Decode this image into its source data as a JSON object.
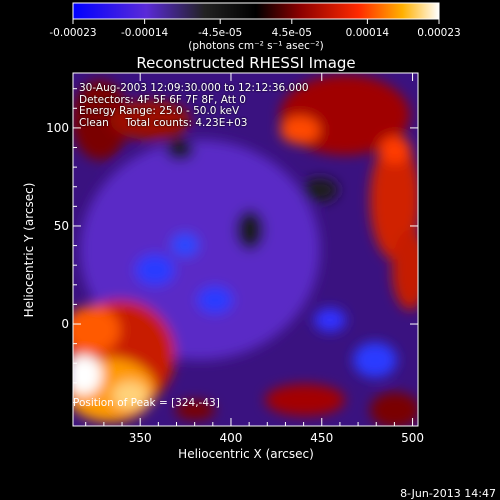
{
  "chart_data": {
    "type": "heatmap",
    "title": "Reconstructed RHESSI Image",
    "xlabel": "Heliocentric X (arcsec)",
    "ylabel": "Heliocentric Y (arcsec)",
    "xlim": [
      313,
      503
    ],
    "ylim": [
      -52,
      128
    ],
    "x_ticks": [
      "350",
      "400",
      "450",
      "500"
    ],
    "y_ticks": [
      "0",
      "50",
      "100"
    ],
    "colorbar": {
      "ticks": [
        "-0.00023",
        "-0.00014",
        "-4.5e-05",
        "4.5e-05",
        "0.00014",
        "0.00023"
      ],
      "units": "(photons cm⁻² s⁻¹ asec⁻²)",
      "range": [
        -0.00023,
        0.00023
      ],
      "colors": [
        "#000000",
        "#1a2aff",
        "#7b2bd6",
        "#3a0606",
        "#b80000",
        "#ff3b00",
        "#ffb000",
        "#ffffff"
      ]
    },
    "annotations": [
      "30-Aug-2003 12:09:30.000 to 12:12:36.000",
      "Detectors: 4F 5F 6F 7F 8F, Att 0",
      "Energy Range: 25.0 - 50.0 keV",
      "Clean     Total counts: 4.23E+03"
    ],
    "peak_label": "Position of Peak = [324,-43]",
    "peak": {
      "x": 324,
      "y": -43
    },
    "date_stamp": "8-Jun-2013 14:47",
    "grid": false
  }
}
